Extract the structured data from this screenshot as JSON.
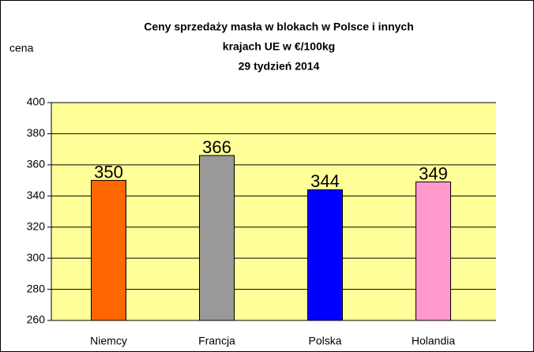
{
  "chart_data": {
    "type": "bar",
    "title": [
      "Ceny sprzedaży masła w blokach w Polsce i  innych",
      "krajach UE w €/100kg",
      "29 tydzień 2014"
    ],
    "y_label": "cena",
    "categories": [
      "Niemcy",
      "Francja",
      "Polska",
      "Holandia"
    ],
    "values": [
      350,
      366,
      344,
      349
    ],
    "colors": [
      "#ff6600",
      "#999999",
      "#0000ff",
      "#ff99cc"
    ],
    "ylim": [
      260,
      400
    ],
    "yticks": [
      260,
      280,
      300,
      320,
      340,
      360,
      380,
      400
    ],
    "grid": true
  }
}
